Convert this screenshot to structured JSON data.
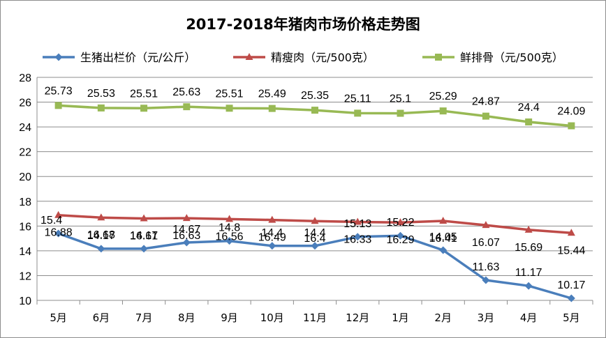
{
  "chart_data": {
    "type": "line",
    "title": "2017-2018年猪肉市场价格走势图",
    "categories": [
      "5月",
      "6月",
      "7月",
      "8月",
      "9月",
      "10月",
      "11月",
      "12月",
      "1月",
      "2月",
      "3月",
      "4月",
      "5月"
    ],
    "ylim": [
      10,
      28
    ],
    "yticks": [
      10,
      12,
      14,
      16,
      18,
      20,
      22,
      24,
      26,
      28
    ],
    "grid": true,
    "legend_position": "top",
    "series": [
      {
        "name": "生猪出栏价（元/公斤）",
        "color": "#4a7ebb",
        "marker": "diamond",
        "values": [
          15.4,
          14.17,
          14.17,
          14.67,
          14.8,
          14.4,
          14.4,
          15.13,
          15.22,
          14.05,
          11.63,
          11.17,
          10.17
        ],
        "labels": [
          "15.4",
          "14.17",
          "14.17",
          "14.67",
          "14.8",
          "14.4",
          "14.4",
          "15.13",
          "15.22",
          "14.05",
          "11.63",
          "11.17",
          "10.17"
        ]
      },
      {
        "name": "精瘦肉（元/500克）",
        "color": "#be4b48",
        "marker": "triangle",
        "values": [
          16.88,
          16.68,
          16.61,
          16.63,
          16.56,
          16.49,
          16.4,
          16.33,
          16.29,
          16.41,
          16.07,
          15.69,
          15.44
        ],
        "labels": [
          "16.88",
          "16.68",
          "16.61",
          "16.63",
          "16.56",
          "16.49",
          "16.4",
          "16.33",
          "16.29",
          "16.41",
          "16.07",
          "15.69",
          "15.44"
        ]
      },
      {
        "name": "鲜排骨（元/500克）",
        "color": "#98b954",
        "marker": "square",
        "values": [
          25.73,
          25.53,
          25.51,
          25.63,
          25.51,
          25.49,
          25.35,
          25.11,
          25.1,
          25.29,
          24.87,
          24.4,
          24.09
        ],
        "labels": [
          "25.73",
          "25.53",
          "25.51",
          "25.63",
          "25.51",
          "25.49",
          "25.35",
          "25.11",
          "25.1",
          "25.29",
          "24.87",
          "24.4",
          "24.09"
        ]
      }
    ]
  }
}
